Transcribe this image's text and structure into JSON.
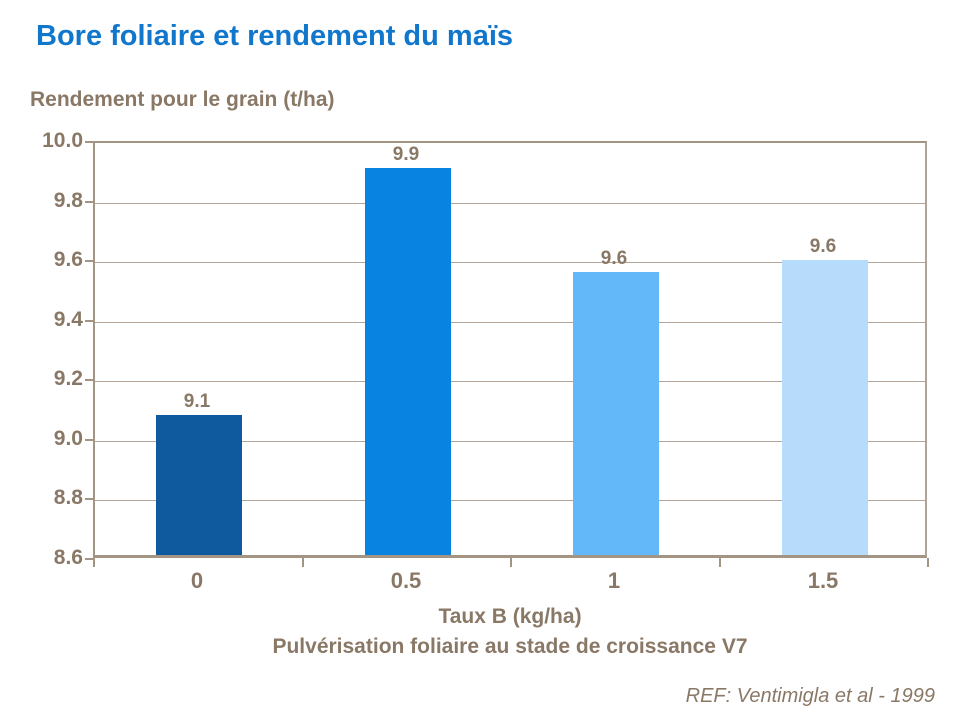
{
  "page": {
    "title": "Bore foliaire et rendement du maïs",
    "footer": "REF: Ventimigla et al - 1999"
  },
  "colors": {
    "title_blue": "#1177cc",
    "text_brown": "#8a7866",
    "gridline": "#b3a698",
    "axis_line": "#a39484",
    "bar_colors": [
      "#0f5a9e",
      "#0883e2",
      "#63b8fa",
      "#b7dcfb"
    ]
  },
  "chart_data": {
    "type": "bar",
    "title": "Bore foliaire et rendement du maïs",
    "ylabel": "Rendement pour le grain (t/ha)",
    "xlabel": "Taux B (kg/ha)",
    "xlabel2": "Pulvérisation foliaire au stade de croissance V7",
    "categories": [
      "0",
      "0.5",
      "1",
      "1.5"
    ],
    "values": [
      9.07,
      9.9,
      9.55,
      9.59
    ],
    "value_labels": [
      "9.1",
      "9.9",
      "9.6",
      "9.6"
    ],
    "ylim": [
      8.6,
      10.0
    ],
    "ytick_labels": [
      "8.6",
      "8.8",
      "9.0",
      "9.2",
      "9.4",
      "9.6",
      "9.8",
      "10.0"
    ],
    "grid": true,
    "legend": false,
    "annotation": "REF: Ventimigla et al - 1999"
  }
}
